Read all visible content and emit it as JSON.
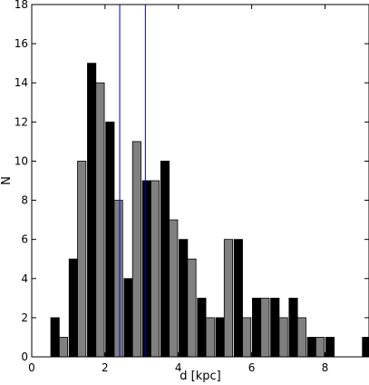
{
  "chart_data": {
    "type": "bar",
    "xlabel": "d [kpc]",
    "ylabel": "N",
    "xlim": [
      0,
      9.2
    ],
    "ylim": [
      0,
      18
    ],
    "x_ticks": [
      "0",
      "2",
      "4",
      "6",
      "8"
    ],
    "y_ticks": [
      "0",
      "2",
      "4",
      "6",
      "8",
      "10",
      "12",
      "14",
      "16",
      "18"
    ],
    "bin_width": 0.5,
    "x": [
      0.5,
      1.0,
      1.5,
      2.0,
      2.5,
      3.0,
      3.5,
      4.0,
      4.5,
      5.0,
      5.5,
      6.0,
      6.5,
      7.0,
      7.5,
      8.0,
      8.5,
      9.0
    ],
    "series": [
      {
        "values": [
          2,
          5,
          15,
          12,
          4,
          9,
          10,
          6,
          3,
          2,
          6,
          3,
          3,
          3,
          1,
          1,
          0,
          1
        ],
        "color": "#000000"
      },
      {
        "values": [
          1,
          10,
          14,
          8,
          11,
          9,
          7,
          5,
          2,
          6,
          2,
          3,
          2,
          2,
          1,
          0,
          0,
          0
        ],
        "color": "#808080"
      }
    ],
    "vertical_lines": [
      {
        "x": 2.4,
        "color": "#0000cc"
      },
      {
        "x": 3.1,
        "color": "#0000cc"
      }
    ],
    "grid": false,
    "legend": "none"
  }
}
